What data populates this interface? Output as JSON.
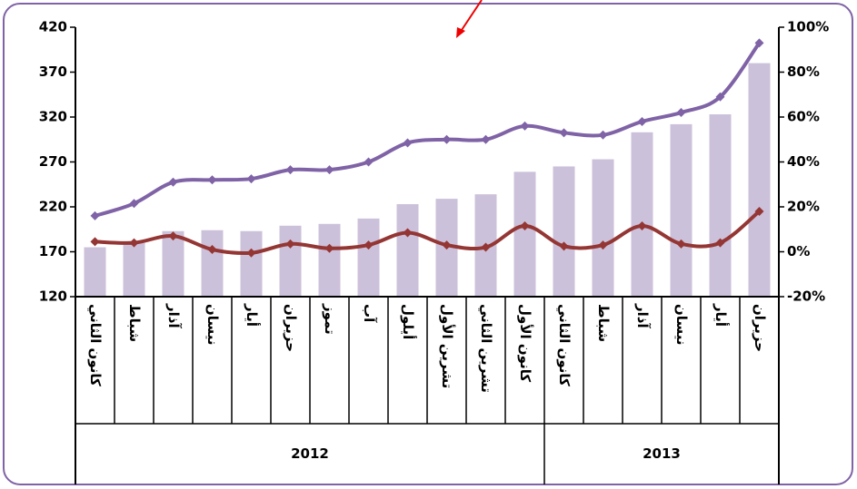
{
  "chart_data": {
    "type": "bar_line",
    "categories": [
      "كانون الثاني",
      "شباط",
      "آذار",
      "نيسان",
      "أيار",
      "حزيران",
      "تموز",
      "آب",
      "أيلول",
      "تشرين الأول",
      "تشرين الثاني",
      "كانون الأول",
      "كانون الثاني",
      "شباط",
      "آذار",
      "نيسان",
      "أيار",
      "حزيران"
    ],
    "groups": [
      {
        "label": "2012",
        "span": 12
      },
      {
        "label": "2013",
        "span": 6
      }
    ],
    "series": [
      {
        "type": "bar",
        "color": "#ccc1da",
        "values": [
          175,
          180,
          193,
          194,
          193,
          199,
          201,
          207,
          223,
          229,
          234,
          259,
          265,
          273,
          303,
          312,
          323,
          380
        ]
      },
      {
        "type": "line",
        "axis": "y2",
        "color": "#7f63a6",
        "values": [
          16,
          21.5,
          31,
          32,
          32.5,
          36.5,
          36.5,
          40,
          48.5,
          50,
          50,
          56,
          53,
          52,
          58,
          62,
          69,
          93
        ]
      },
      {
        "type": "line",
        "axis": "y2",
        "color": "#943634",
        "values": [
          4.5,
          4,
          7,
          1,
          -0.5,
          3.5,
          1.5,
          3,
          8.5,
          3,
          2,
          11.5,
          2.5,
          3,
          11.5,
          3.5,
          4,
          18
        ]
      }
    ],
    "ylim": [
      120,
      420
    ],
    "yticks": [
      120,
      170,
      220,
      270,
      320,
      370,
      420
    ],
    "y2lim": [
      -20,
      100
    ],
    "y2ticks": [
      {
        "value": -20,
        "label": "-20%"
      },
      {
        "value": 0,
        "label": "0%"
      },
      {
        "value": 20,
        "label": "20%"
      },
      {
        "value": 40,
        "label": "40%"
      },
      {
        "value": 60,
        "label": "60%"
      },
      {
        "value": 80,
        "label": "80%"
      },
      {
        "value": 100,
        "label": "100%"
      }
    ]
  }
}
